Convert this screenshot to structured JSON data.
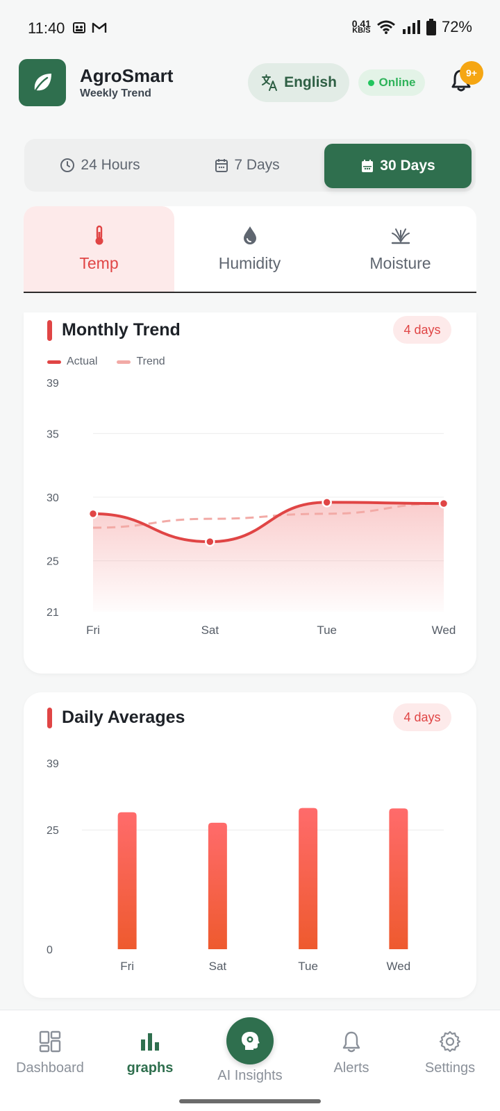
{
  "status_bar": {
    "time": "11:40",
    "net_speed": "0.41",
    "net_unit": "KB/S",
    "battery": "72%"
  },
  "header": {
    "app_name": "AgroSmart",
    "subtitle": "Weekly Trend",
    "language": "English",
    "online": "Online",
    "notif_count": "9+",
    "icons": {
      "logo": "leaf-icon",
      "language": "translate-icon",
      "notifications": "bell-icon"
    }
  },
  "range_tabs": [
    {
      "label": "24 Hours",
      "icon": "clock-icon",
      "active": false
    },
    {
      "label": "7 Days",
      "icon": "calendar-icon",
      "active": false
    },
    {
      "label": "30 Days",
      "icon": "calendar-icon",
      "active": true
    }
  ],
  "metric_tabs": [
    {
      "label": "Temp",
      "icon": "thermometer-icon",
      "active": true
    },
    {
      "label": "Humidity",
      "icon": "droplet-icon",
      "active": false
    },
    {
      "label": "Moisture",
      "icon": "sprout-icon",
      "active": false
    }
  ],
  "colors": {
    "brand": "#2f6f4e",
    "accent": "#e04545",
    "trend": "#f2aaa6",
    "online": "#22c55e",
    "badge": "#f5a613"
  },
  "chart_data": [
    {
      "type": "line",
      "title": "Monthly Trend",
      "badge": "4 days",
      "categories": [
        "Fri",
        "Sat",
        "Tue",
        "Wed"
      ],
      "series": [
        {
          "name": "Actual",
          "values": [
            28.7,
            26.5,
            29.6,
            29.5
          ]
        },
        {
          "name": "Trend",
          "values": [
            27.6,
            28.3,
            28.7,
            29.5
          ]
        }
      ],
      "yticks": [
        21,
        25,
        30,
        35,
        39
      ],
      "ylim": [
        21,
        39
      ],
      "grid": true,
      "legend": "top-left"
    },
    {
      "type": "bar",
      "title": "Daily Averages",
      "badge": "4 days",
      "categories": [
        "Fri",
        "Sat",
        "Tue",
        "Wed"
      ],
      "values": [
        28.7,
        26.5,
        29.6,
        29.5
      ],
      "yticks": [
        0,
        25,
        39
      ],
      "ylim": [
        0,
        39
      ],
      "grid": true
    }
  ],
  "bottom_nav": [
    {
      "label": "Dashboard",
      "icon": "dashboard-icon",
      "active": false
    },
    {
      "label": "graphs",
      "icon": "bar-chart-icon",
      "active": true
    },
    {
      "label": "AI Insights",
      "icon": "ai-brain-icon",
      "active": false
    },
    {
      "label": "Alerts",
      "icon": "bell-icon",
      "active": false
    },
    {
      "label": "Settings",
      "icon": "gear-icon",
      "active": false
    }
  ]
}
